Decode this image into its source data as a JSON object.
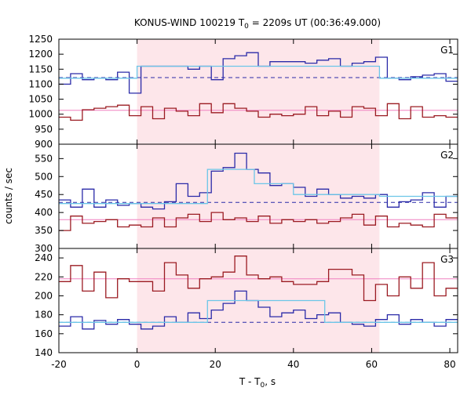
{
  "chart_data": {
    "type": "line",
    "title_main": "KONUS-WIND 100219 T",
    "title_sub": "0",
    "title_rest": " = 2209s UT (00:36:49.000)",
    "xlabel_main": "T - T",
    "xlabel_sub": "0",
    "xlabel_rest": ", s",
    "ylabel": "counts / sec",
    "xlim": [
      -20,
      82
    ],
    "x_ticks": [
      -20,
      0,
      20,
      40,
      60,
      80
    ],
    "highlight_interval": [
      0,
      62
    ],
    "colors": {
      "source": "#2a2aa8",
      "background_series": "#9b1b22",
      "fit": "#6cc6e8",
      "bg_level": "#f080c0",
      "bg_dashed": "#2a2aa8",
      "highlight": "#fde6ea"
    },
    "panels": [
      {
        "name": "G1",
        "ylim": [
          900,
          1250
        ],
        "y_ticks": [
          900,
          950,
          1000,
          1050,
          1100,
          1150,
          1200,
          1250
        ],
        "series": [
          {
            "role": "source",
            "edges": [
              -20,
              -17,
              -14,
              -11,
              -8,
              -5,
              -2,
              1,
              4,
              7,
              10,
              13,
              16,
              19,
              22,
              25,
              28,
              31,
              34,
              37,
              40,
              43,
              46,
              49,
              52,
              55,
              58,
              61,
              64,
              67,
              70,
              73,
              76,
              79,
              82
            ],
            "values": [
              1100,
              1135,
              1115,
              1120,
              1115,
              1140,
              1070,
              1160,
              1160,
              1160,
              1160,
              1150,
              1160,
              1115,
              1185,
              1195,
              1205,
              1160,
              1175,
              1175,
              1175,
              1170,
              1180,
              1185,
              1160,
              1170,
              1175,
              1190,
              1120,
              1115,
              1125,
              1130,
              1135,
              1110
            ]
          },
          {
            "role": "background",
            "edges": [
              -20,
              -17,
              -14,
              -11,
              -8,
              -5,
              -2,
              1,
              4,
              7,
              10,
              13,
              16,
              19,
              22,
              25,
              28,
              31,
              34,
              37,
              40,
              43,
              46,
              49,
              52,
              55,
              58,
              61,
              64,
              67,
              70,
              73,
              76,
              79,
              82
            ],
            "values": [
              990,
              980,
              1015,
              1020,
              1025,
              1030,
              995,
              1025,
              985,
              1020,
              1010,
              995,
              1035,
              1005,
              1035,
              1020,
              1010,
              990,
              1000,
              995,
              1000,
              1025,
              995,
              1010,
              990,
              1025,
              1020,
              995,
              1035,
              985,
              1025,
              990,
              995,
              990
            ]
          }
        ],
        "fit_steps": [
          [
            -20,
            1120
          ],
          [
            0,
            1160
          ],
          [
            18,
            1160
          ],
          [
            62,
            1120
          ],
          [
            82,
            1120
          ]
        ],
        "bg_level": 1013,
        "bg_dashed": 1122
      },
      {
        "name": "G2",
        "ylim": [
          300,
          590
        ],
        "y_ticks": [
          300,
          350,
          400,
          450,
          500,
          550
        ],
        "series": [
          {
            "role": "source",
            "edges": [
              -20,
              -17,
              -14,
              -11,
              -8,
              -5,
              -2,
              1,
              4,
              7,
              10,
              13,
              16,
              19,
              22,
              25,
              28,
              31,
              34,
              37,
              40,
              43,
              46,
              49,
              52,
              55,
              58,
              61,
              64,
              67,
              70,
              73,
              76,
              79,
              82
            ],
            "values": [
              435,
              415,
              465,
              415,
              435,
              420,
              425,
              415,
              410,
              430,
              480,
              445,
              455,
              515,
              525,
              565,
              520,
              510,
              475,
              480,
              470,
              445,
              465,
              450,
              440,
              445,
              440,
              450,
              415,
              430,
              435,
              455,
              415,
              445
            ]
          },
          {
            "role": "background",
            "edges": [
              -20,
              -17,
              -14,
              -11,
              -8,
              -5,
              -2,
              1,
              4,
              7,
              10,
              13,
              16,
              19,
              22,
              25,
              28,
              31,
              34,
              37,
              40,
              43,
              46,
              49,
              52,
              55,
              58,
              61,
              64,
              67,
              70,
              73,
              76,
              79,
              82
            ],
            "values": [
              350,
              390,
              370,
              375,
              380,
              360,
              365,
              360,
              385,
              360,
              385,
              395,
              375,
              400,
              380,
              385,
              375,
              390,
              370,
              380,
              375,
              380,
              370,
              375,
              385,
              395,
              365,
              390,
              360,
              370,
              365,
              360,
              395,
              385
            ]
          }
        ],
        "fit_steps": [
          [
            -20,
            425
          ],
          [
            18,
            520
          ],
          [
            30,
            480
          ],
          [
            40,
            450
          ],
          [
            62,
            445
          ],
          [
            82,
            420
          ]
        ],
        "bg_level": 380,
        "bg_dashed": 428
      },
      {
        "name": "G3",
        "ylim": [
          140,
          250
        ],
        "y_ticks": [
          140,
          160,
          180,
          200,
          220,
          240
        ],
        "series": [
          {
            "role": "background",
            "edges": [
              -20,
              -17,
              -14,
              -11,
              -8,
              -5,
              -2,
              1,
              4,
              7,
              10,
              13,
              16,
              19,
              22,
              25,
              28,
              31,
              34,
              37,
              40,
              43,
              46,
              49,
              52,
              55,
              58,
              61,
              64,
              67,
              70,
              73,
              76,
              79,
              82
            ],
            "values": [
              215,
              232,
              205,
              225,
              198,
              218,
              215,
              215,
              205,
              235,
              222,
              208,
              218,
              220,
              225,
              242,
              222,
              218,
              220,
              215,
              212,
              212,
              215,
              228,
              228,
              222,
              195,
              212,
              200,
              220,
              208,
              235,
              200,
              208
            ]
          },
          {
            "role": "source",
            "edges": [
              -20,
              -17,
              -14,
              -11,
              -8,
              -5,
              -2,
              1,
              4,
              7,
              10,
              13,
              16,
              19,
              22,
              25,
              28,
              31,
              34,
              37,
              40,
              43,
              46,
              49,
              52,
              55,
              58,
              61,
              64,
              67,
              70,
              73,
              76,
              79,
              82
            ],
            "values": [
              168,
              178,
              165,
              174,
              170,
              175,
              170,
              165,
              168,
              178,
              172,
              182,
              176,
              185,
              192,
              205,
              195,
              188,
              178,
              182,
              185,
              176,
              180,
              182,
              172,
              170,
              168,
              175,
              180,
              170,
              175,
              172,
              168,
              175
            ]
          }
        ],
        "fit_steps": [
          [
            -20,
            172
          ],
          [
            18,
            195
          ],
          [
            48,
            172
          ],
          [
            82,
            172
          ]
        ],
        "bg_level": 218,
        "bg_dashed": 172
      }
    ]
  }
}
